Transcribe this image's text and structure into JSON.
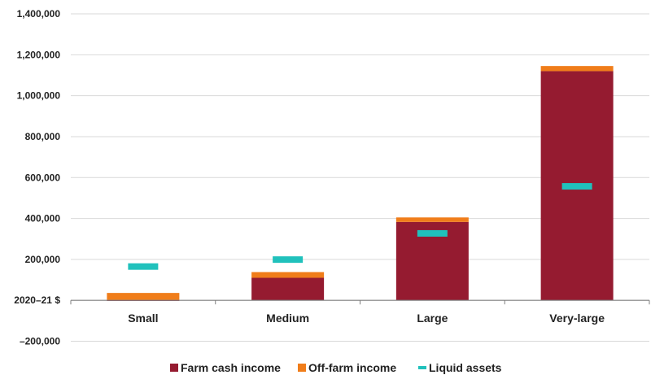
{
  "chart_data": {
    "type": "bar",
    "stacked": true,
    "categories": [
      "Small",
      "Medium",
      "Large",
      "Very-large"
    ],
    "series": [
      {
        "name": "Farm cash income",
        "kind": "bar",
        "color": "#951b30",
        "values": [
          -3000,
          110000,
          383000,
          1120000
        ]
      },
      {
        "name": "Off-farm income",
        "kind": "bar",
        "color": "#f07d1a",
        "values": [
          36000,
          28000,
          22000,
          25000
        ]
      },
      {
        "name": "Liquid assets",
        "kind": "marker",
        "color": "#20c1bc",
        "values": [
          165000,
          199000,
          327000,
          557000
        ]
      }
    ],
    "y_ticks": [
      {
        "value": 1400000,
        "label": "1,400,000"
      },
      {
        "value": 1200000,
        "label": "1,200,000"
      },
      {
        "value": 1000000,
        "label": "1,000,000"
      },
      {
        "value": 800000,
        "label": "800,000"
      },
      {
        "value": 600000,
        "label": "600,000"
      },
      {
        "value": 400000,
        "label": "400,000"
      },
      {
        "value": 200000,
        "label": "200,000"
      },
      {
        "value": 0,
        "label": "2020–21 $"
      },
      {
        "value": -200000,
        "label": "–200,000"
      }
    ],
    "ylim": [
      -200000,
      1400000
    ],
    "grid": true,
    "legend_position": "bottom"
  }
}
